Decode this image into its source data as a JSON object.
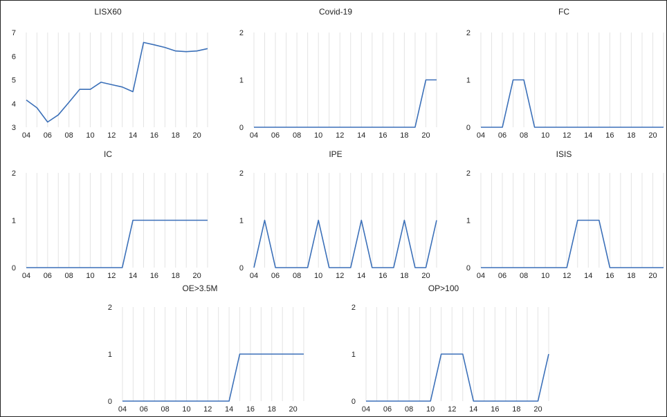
{
  "chart_data": [
    {
      "type": "line",
      "title": "LISX60",
      "x": [
        4,
        5,
        6,
        7,
        8,
        9,
        10,
        11,
        12,
        13,
        14,
        15,
        16,
        17,
        18,
        19,
        20,
        21
      ],
      "xticks": [
        "04",
        "06",
        "08",
        "10",
        "12",
        "14",
        "16",
        "18",
        "20"
      ],
      "ylim": [
        3,
        7
      ],
      "yticks": [
        "3",
        "4",
        "5",
        "6",
        "7"
      ],
      "values": [
        4.15,
        3.82,
        3.22,
        3.52,
        4.05,
        4.6,
        4.6,
        4.9,
        4.8,
        4.7,
        4.5,
        6.58,
        6.48,
        6.37,
        6.22,
        6.19,
        6.22,
        6.32
      ]
    },
    {
      "type": "line",
      "title": "Covid-19",
      "x": [
        4,
        5,
        6,
        7,
        8,
        9,
        10,
        11,
        12,
        13,
        14,
        15,
        16,
        17,
        18,
        19,
        20,
        21
      ],
      "xticks": [
        "04",
        "06",
        "08",
        "10",
        "12",
        "14",
        "16",
        "18",
        "20"
      ],
      "ylim": [
        0,
        2
      ],
      "yticks": [
        "0",
        "1",
        "2"
      ],
      "values": [
        0,
        0,
        0,
        0,
        0,
        0,
        0,
        0,
        0,
        0,
        0,
        0,
        0,
        0,
        0,
        0,
        1,
        1
      ]
    },
    {
      "type": "line",
      "title": "FC",
      "x": [
        4,
        5,
        6,
        7,
        8,
        9,
        10,
        11,
        12,
        13,
        14,
        15,
        16,
        17,
        18,
        19,
        20,
        21
      ],
      "xticks": [
        "04",
        "06",
        "08",
        "10",
        "12",
        "14",
        "16",
        "18",
        "20"
      ],
      "ylim": [
        0,
        2
      ],
      "yticks": [
        "0",
        "1",
        "2"
      ],
      "values": [
        0,
        0,
        0,
        1,
        1,
        0,
        0,
        0,
        0,
        0,
        0,
        0,
        0,
        0,
        0,
        0,
        0,
        0
      ]
    },
    {
      "type": "line",
      "title": "IC",
      "x": [
        4,
        5,
        6,
        7,
        8,
        9,
        10,
        11,
        12,
        13,
        14,
        15,
        16,
        17,
        18,
        19,
        20,
        21
      ],
      "xticks": [
        "04",
        "06",
        "08",
        "10",
        "12",
        "14",
        "16",
        "18",
        "20"
      ],
      "ylim": [
        0,
        2
      ],
      "yticks": [
        "0",
        "1",
        "2"
      ],
      "values": [
        0,
        0,
        0,
        0,
        0,
        0,
        0,
        0,
        0,
        0,
        1,
        1,
        1,
        1,
        1,
        1,
        1,
        1
      ]
    },
    {
      "type": "line",
      "title": "IPE",
      "x": [
        4,
        5,
        6,
        7,
        8,
        9,
        10,
        11,
        12,
        13,
        14,
        15,
        16,
        17,
        18,
        19,
        20,
        21
      ],
      "xticks": [
        "04",
        "06",
        "08",
        "10",
        "12",
        "14",
        "16",
        "18",
        "20"
      ],
      "ylim": [
        0,
        2
      ],
      "yticks": [
        "0",
        "1",
        "2"
      ],
      "values": [
        0,
        1,
        0,
        0,
        0,
        0,
        1,
        0,
        0,
        0,
        1,
        0,
        0,
        0,
        1,
        0,
        0,
        1
      ]
    },
    {
      "type": "line",
      "title": "ISIS",
      "x": [
        4,
        5,
        6,
        7,
        8,
        9,
        10,
        11,
        12,
        13,
        14,
        15,
        16,
        17,
        18,
        19,
        20,
        21
      ],
      "xticks": [
        "04",
        "06",
        "08",
        "10",
        "12",
        "14",
        "16",
        "18",
        "20"
      ],
      "ylim": [
        0,
        2
      ],
      "yticks": [
        "0",
        "1",
        "2"
      ],
      "values": [
        0,
        0,
        0,
        0,
        0,
        0,
        0,
        0,
        0,
        1,
        1,
        1,
        0,
        0,
        0,
        0,
        0,
        0
      ]
    },
    {
      "type": "line",
      "title": "OE>3.5M",
      "x": [
        4,
        5,
        6,
        7,
        8,
        9,
        10,
        11,
        12,
        13,
        14,
        15,
        16,
        17,
        18,
        19,
        20,
        21
      ],
      "xticks": [
        "04",
        "06",
        "08",
        "10",
        "12",
        "14",
        "16",
        "18",
        "20"
      ],
      "ylim": [
        0,
        2
      ],
      "yticks": [
        "0",
        "1",
        "2"
      ],
      "values": [
        0,
        0,
        0,
        0,
        0,
        0,
        0,
        0,
        0,
        0,
        0,
        1,
        1,
        1,
        1,
        1,
        1,
        1
      ]
    },
    {
      "type": "line",
      "title": "OP>100",
      "x": [
        4,
        5,
        6,
        7,
        8,
        9,
        10,
        11,
        12,
        13,
        14,
        15,
        16,
        17,
        18,
        19,
        20,
        21
      ],
      "xticks": [
        "04",
        "06",
        "08",
        "10",
        "12",
        "14",
        "16",
        "18",
        "20"
      ],
      "ylim": [
        0,
        2
      ],
      "yticks": [
        "0",
        "1",
        "2"
      ],
      "values": [
        0,
        0,
        0,
        0,
        0,
        0,
        0,
        1,
        1,
        1,
        0,
        0,
        0,
        0,
        0,
        0,
        0,
        1
      ]
    }
  ]
}
